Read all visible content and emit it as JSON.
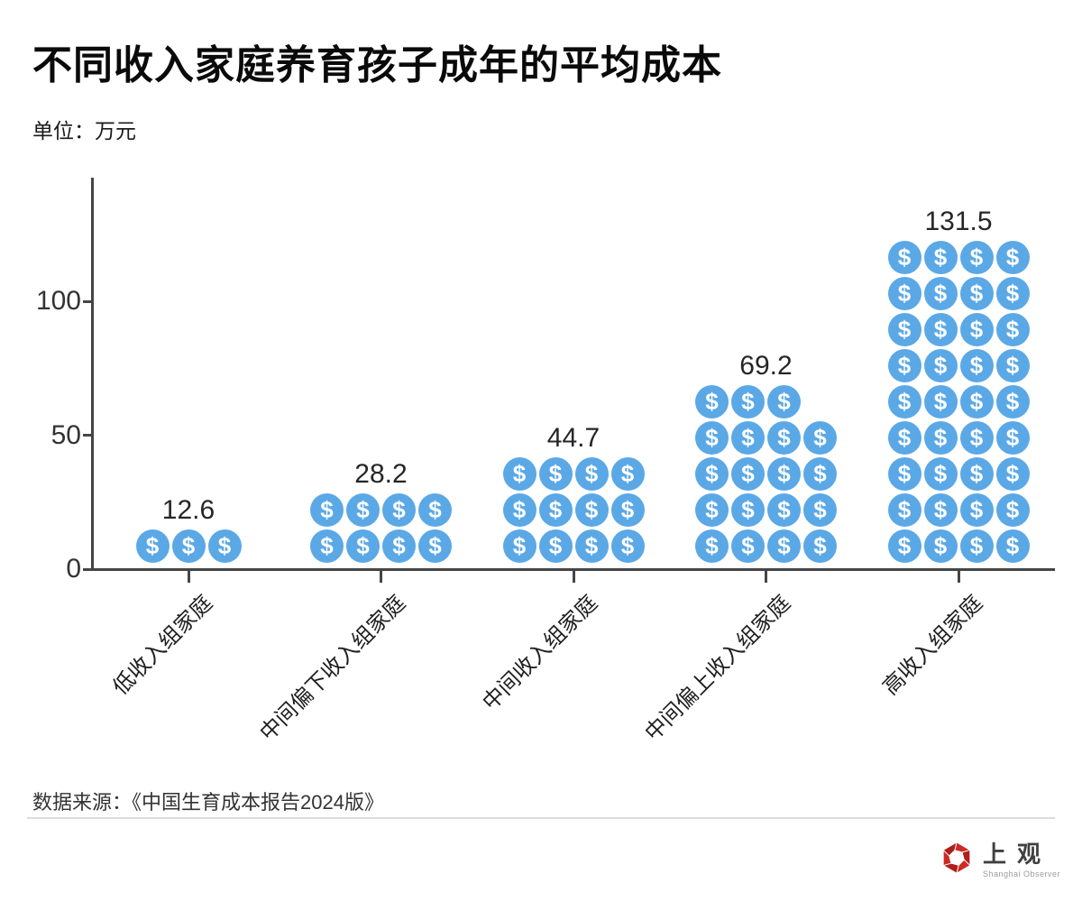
{
  "header": {
    "title": "不同收入家庭养育孩子成年的平均成本",
    "unit_label": "单位：万元"
  },
  "chart_data": {
    "type": "bar",
    "subtype": "pictogram",
    "title": "不同收入家庭养育孩子成年的平均成本",
    "ylabel": "万元",
    "categories": [
      "低收入组家庭",
      "中间偏下收入组家庭",
      "中间收入组家庭",
      "中间偏上收入组家庭",
      "高收入组家庭"
    ],
    "values": [
      12.6,
      28.2,
      44.7,
      69.2,
      131.5
    ],
    "value_labels": [
      "12.6",
      "28.2",
      "44.7",
      "69.2",
      "131.5"
    ],
    "icon_counts": [
      3,
      8,
      12,
      19,
      36
    ],
    "icons_per_row": 4,
    "icon_symbol": "$",
    "icon_color": "#5BA8E6",
    "icon_glyph_color": "#ffffff",
    "yticks": [
      "0",
      "50",
      "100"
    ],
    "ytick_values": [
      0,
      50,
      100
    ],
    "ylim": [
      0,
      146
    ],
    "axis_color": "#454545",
    "grid": false,
    "legend": false
  },
  "footer": {
    "source": "数据来源：《中国生育成本报告2024版》"
  },
  "logo": {
    "name": "上观",
    "subtitle": "Shanghai Observer",
    "brand_color": "#CE2A25",
    "brand_color_dark": "#AE1E1B"
  }
}
